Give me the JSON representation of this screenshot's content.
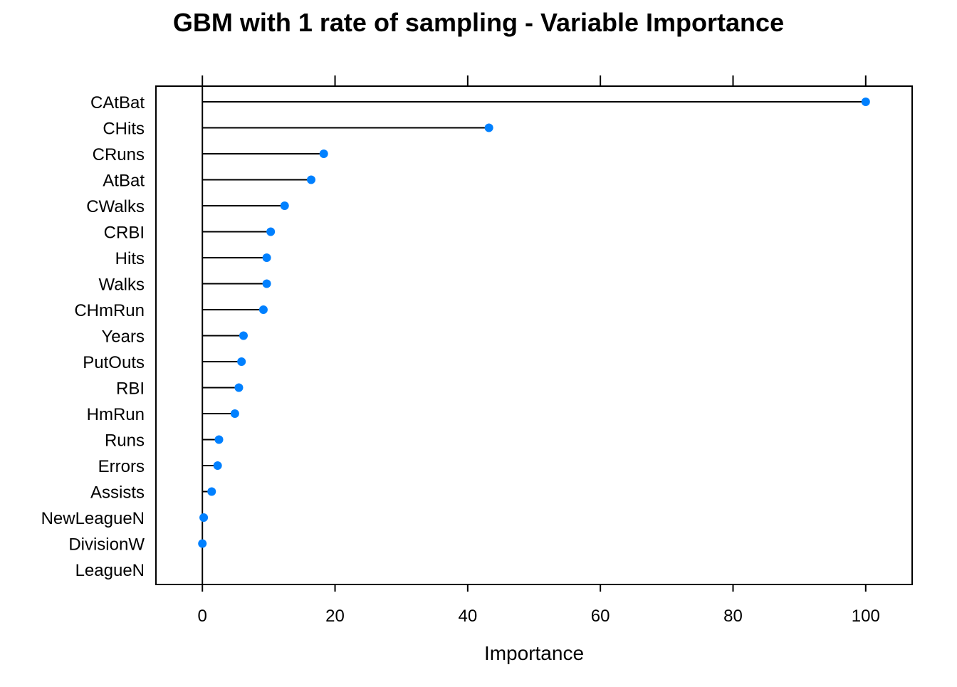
{
  "chart_data": {
    "type": "dot",
    "title": "GBM with 1 rate of sampling - Variable Importance",
    "xlabel": "Importance",
    "ylabel": "",
    "xlim": [
      -7,
      107
    ],
    "xticks": [
      0,
      20,
      40,
      60,
      80,
      100
    ],
    "grid": false,
    "colors": {
      "point": "#0080ff",
      "stem": "#000000",
      "axis": "#000000"
    },
    "categories": [
      "CAtBat",
      "CHits",
      "CRuns",
      "AtBat",
      "CWalks",
      "CRBI",
      "Hits",
      "Walks",
      "CHmRun",
      "Years",
      "PutOuts",
      "RBI",
      "HmRun",
      "Runs",
      "Errors",
      "Assists",
      "NewLeagueN",
      "DivisionW",
      "LeagueN"
    ],
    "values": [
      100,
      43.2,
      18.3,
      16.4,
      12.4,
      10.3,
      9.7,
      9.7,
      9.2,
      6.2,
      5.9,
      5.5,
      4.9,
      2.5,
      2.3,
      1.4,
      0.2,
      0,
      null
    ]
  }
}
